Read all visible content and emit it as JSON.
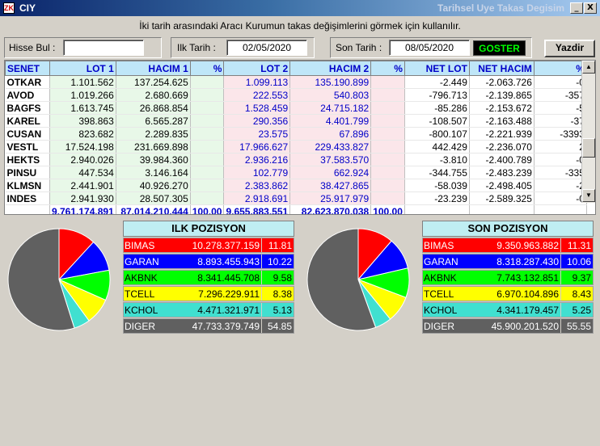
{
  "window": {
    "app_icon": "ZK",
    "app_name": "CIY",
    "caption": "Tarihsel Uye Takas Degisim",
    "minimize": "_",
    "close": "X"
  },
  "hint": "İki tarih arasındaki  Aracı Kurumun takas değişimlerini görmek için kullanılır.",
  "form": {
    "hisse_label": "Hisse Bul :",
    "hisse_value": "",
    "ilk_label": "Ilk Tarih :",
    "ilk_value": "02/05/2020",
    "son_label": "Son Tarih :",
    "son_value": "08/05/2020",
    "goster": "GOSTER",
    "yazdir": "Yazdir"
  },
  "table": {
    "headers": [
      "SENET",
      "LOT 1",
      "HACIM 1",
      "%",
      "LOT 2",
      "HACIM 2",
      "%",
      "NET LOT",
      "NET HACIM",
      "%"
    ],
    "rows": [
      [
        "OTKAR",
        "1.101.562",
        "137.254.625",
        "",
        "1.099.113",
        "135.190.899",
        "",
        "-2.449",
        "-2.063.726",
        "-0"
      ],
      [
        "AVOD",
        "1.019.266",
        "2.680.669",
        "",
        "222.553",
        "540.803",
        "",
        "-796.713",
        "-2.139.865",
        "-357"
      ],
      [
        "BAGFS",
        "1.613.745",
        "26.868.854",
        "",
        "1.528.459",
        "24.715.182",
        "",
        "-85.286",
        "-2.153.672",
        "-5"
      ],
      [
        "KAREL",
        "398.863",
        "6.565.287",
        "",
        "290.356",
        "4.401.799",
        "",
        "-108.507",
        "-2.163.488",
        "-37"
      ],
      [
        "CUSAN",
        "823.682",
        "2.289.835",
        "",
        "23.575",
        "67.896",
        "",
        "-800.107",
        "-2.221.939",
        "-3393"
      ],
      [
        "VESTL",
        "17.524.198",
        "231.669.898",
        "",
        "17.966.627",
        "229.433.827",
        "",
        "442.429",
        "-2.236.070",
        "2"
      ],
      [
        "HEKTS",
        "2.940.026",
        "39.984.360",
        "",
        "2.936.216",
        "37.583.570",
        "",
        "-3.810",
        "-2.400.789",
        "-0"
      ],
      [
        "PINSU",
        "447.534",
        "3.146.164",
        "",
        "102.779",
        "662.924",
        "",
        "-344.755",
        "-2.483.239",
        "-335"
      ],
      [
        "KLMSN",
        "2.441.901",
        "40.926.270",
        "",
        "2.383.862",
        "38.427.865",
        "",
        "-58.039",
        "-2.498.405",
        "-2"
      ],
      [
        "INDES",
        "2.941.930",
        "28.507.305",
        "",
        "2.918.691",
        "25.917.979",
        "",
        "-23.239",
        "-2.589.325",
        "-0"
      ]
    ],
    "totals": [
      "",
      "9.761.174.891",
      "87.014.210.444",
      "100,00",
      "9.655.883.551",
      "82.623.870.038",
      "100,00",
      "",
      "",
      ""
    ]
  },
  "ilk_pozisyon": {
    "title": "ILK POZISYON",
    "rows": [
      {
        "name": "BIMAS",
        "value": "10.278.377.159",
        "pct": "11.81",
        "pct_num": 11.81,
        "bg": "#ff0000",
        "fg": "#ffffff"
      },
      {
        "name": "GARAN",
        "value": "8.893.455.943",
        "pct": "10.22",
        "pct_num": 10.22,
        "bg": "#0000ff",
        "fg": "#ffffff"
      },
      {
        "name": "AKBNK",
        "value": "8.341.445.708",
        "pct": "9.58",
        "pct_num": 9.58,
        "bg": "#00ff00",
        "fg": "#000000"
      },
      {
        "name": "TCELL",
        "value": "7.296.229.911",
        "pct": "8.38",
        "pct_num": 8.38,
        "bg": "#ffff00",
        "fg": "#000000"
      },
      {
        "name": "KCHOL",
        "value": "4.471.321.971",
        "pct": "5.13",
        "pct_num": 5.13,
        "bg": "#40e0d0",
        "fg": "#000000"
      },
      {
        "name": "DIGER",
        "value": "47.733.379.749",
        "pct": "54.85",
        "pct_num": 54.85,
        "bg": "#606060",
        "fg": "#ffffff"
      }
    ]
  },
  "son_pozisyon": {
    "title": "SON POZISYON",
    "rows": [
      {
        "name": "BIMAS",
        "value": "9.350.963.882",
        "pct": "11.31",
        "pct_num": 11.31,
        "bg": "#ff0000",
        "fg": "#ffffff"
      },
      {
        "name": "GARAN",
        "value": "8.318.287.430",
        "pct": "10.06",
        "pct_num": 10.06,
        "bg": "#0000ff",
        "fg": "#ffffff"
      },
      {
        "name": "AKBNK",
        "value": "7.743.132.851",
        "pct": "9.37",
        "pct_num": 9.37,
        "bg": "#00ff00",
        "fg": "#000000"
      },
      {
        "name": "TCELL",
        "value": "6.970.104.896",
        "pct": "8.43",
        "pct_num": 8.43,
        "bg": "#ffff00",
        "fg": "#000000"
      },
      {
        "name": "KCHOL",
        "value": "4.341.179.457",
        "pct": "5.25",
        "pct_num": 5.25,
        "bg": "#40e0d0",
        "fg": "#000000"
      },
      {
        "name": "DIGER",
        "value": "45.900.201.520",
        "pct": "55.55",
        "pct_num": 55.55,
        "bg": "#606060",
        "fg": "#ffffff"
      }
    ]
  }
}
